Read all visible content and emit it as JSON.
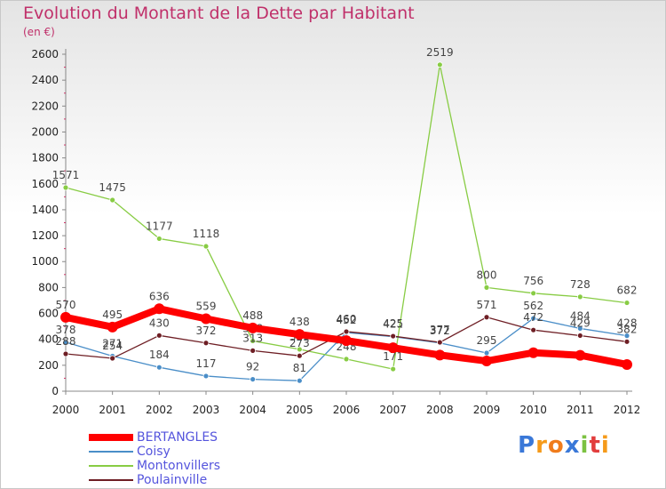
{
  "title": "Evolution du Montant de la Dette par Habitant",
  "subtitle": "(en €)",
  "logo": {
    "text": "Proxiti",
    "letters": [
      "P",
      "r",
      "o",
      "x",
      "i",
      "t",
      "i"
    ],
    "colors": [
      "#3a78d8",
      "#f59a1a",
      "#f07c1c",
      "#3a78d8",
      "#7cc242",
      "#e23d3d",
      "#f59a1a"
    ]
  },
  "chart_data": {
    "type": "line",
    "x": [
      "2000",
      "2001",
      "2002",
      "2003",
      "2004",
      "2005",
      "2006",
      "2007",
      "2008",
      "2009",
      "2010",
      "2011",
      "2012"
    ],
    "ylim": [
      0,
      2600
    ],
    "yticks": [
      0,
      200,
      400,
      600,
      800,
      1000,
      1200,
      1400,
      1600,
      1800,
      2000,
      2200,
      2400,
      2600
    ],
    "grid": false,
    "legend": "bottom-left",
    "series": [
      {
        "name": "BERTANGLES",
        "color": "#ff0000",
        "values": [
          570,
          495,
          636,
          559,
          488,
          438,
          390,
          335,
          279,
          233,
          297,
          277,
          206
        ],
        "labels": [
          "570",
          "495",
          "636",
          "559",
          "488",
          "438",
          "",
          "",
          "",
          "",
          "",
          "",
          ""
        ]
      },
      {
        "name": "Coisy",
        "color": "#4a8ec8",
        "values": [
          378,
          271,
          184,
          117,
          92,
          81,
          452,
          421,
          372,
          295,
          562,
          484,
          428
        ],
        "labels": [
          "378",
          "271",
          "184",
          "117",
          "92",
          "81",
          "452",
          "421",
          "372",
          "295",
          "562",
          "484",
          "428"
        ]
      },
      {
        "name": "Montonvillers",
        "color": "#88cc44",
        "values": [
          1571,
          1475,
          1177,
          1118,
          388,
          323,
          248,
          171,
          2519,
          800,
          756,
          728,
          682
        ],
        "labels": [
          "1571",
          "1475",
          "1177",
          "1118",
          "388",
          "323",
          "248",
          "171",
          "2519",
          "800",
          "756",
          "728",
          "682"
        ]
      },
      {
        "name": "Poulainville",
        "color": "#6e1e24",
        "values": [
          288,
          254,
          430,
          372,
          313,
          273,
          460,
          425,
          377,
          571,
          472,
          429,
          382
        ],
        "labels": [
          "288",
          "254",
          "430",
          "372",
          "313",
          "273",
          "460",
          "425",
          "377",
          "571",
          "472",
          "429",
          "382"
        ]
      }
    ]
  }
}
